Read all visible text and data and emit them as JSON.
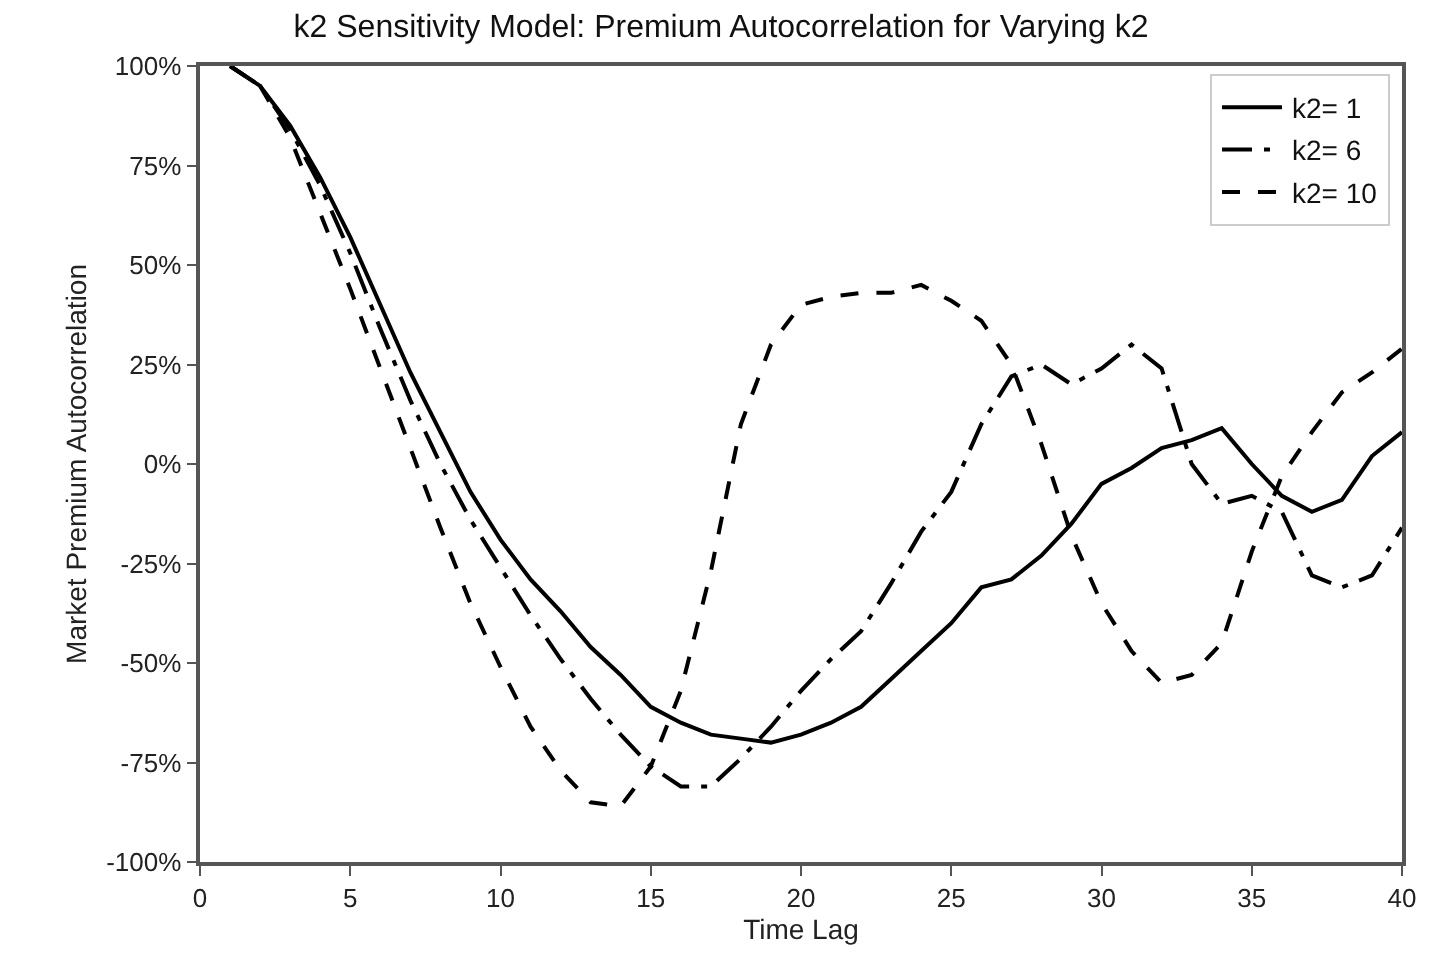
{
  "chart_data": {
    "type": "line",
    "title": "k2 Sensitivity Model: Premium Autocorrelation for Varying k2",
    "xlabel": "Time Lag",
    "ylabel": "Market Premium Autocorrelation",
    "x": [
      1,
      2,
      3,
      4,
      5,
      6,
      7,
      8,
      9,
      10,
      11,
      12,
      13,
      14,
      15,
      16,
      17,
      18,
      19,
      20,
      21,
      22,
      23,
      24,
      25,
      26,
      27,
      28,
      29,
      30,
      31,
      32,
      33,
      34,
      35,
      36,
      37,
      38,
      39,
      40
    ],
    "series": [
      {
        "name": "k2= 1",
        "color": "#000000",
        "line_style": "solid",
        "values": [
          100,
          95,
          85,
          72,
          57,
          40,
          23,
          8,
          -7,
          -19,
          -29,
          -37,
          -46,
          -53,
          -61,
          -65,
          -68,
          -69,
          -70,
          -68,
          -65,
          -61,
          -54,
          -47,
          -40,
          -31,
          -29,
          -23,
          -15,
          -5,
          -1,
          4,
          6,
          9,
          0,
          -8,
          -12,
          -9,
          2,
          8
        ]
      },
      {
        "name": "k2= 6",
        "color": "#000000",
        "line_style": "dashdot",
        "values": [
          100,
          95,
          84,
          70,
          53,
          34,
          16,
          0,
          -14,
          -26,
          -38,
          -49,
          -59,
          -68,
          -76,
          -81,
          -81,
          -74,
          -66,
          -57,
          -49,
          -42,
          -30,
          -17,
          -7,
          10,
          22,
          25,
          20,
          24,
          30,
          24,
          0,
          -10,
          -8,
          -12,
          -28,
          -31,
          -28,
          -16
        ]
      },
      {
        "name": "k2= 10",
        "color": "#000000",
        "line_style": "dashed",
        "values": [
          100,
          95,
          82,
          63,
          44,
          24,
          4,
          -16,
          -35,
          -51,
          -66,
          -77,
          -85,
          -86,
          -76,
          -57,
          -27,
          10,
          30,
          40,
          42,
          43,
          43,
          45,
          41,
          36,
          25,
          5,
          -18,
          -35,
          -47,
          -55,
          -53,
          -45,
          -22,
          -3,
          8,
          18,
          23,
          29
        ]
      }
    ],
    "xlim": [
      0,
      40
    ],
    "xticks": [
      0,
      5,
      10,
      15,
      20,
      25,
      30,
      35,
      40
    ],
    "ylim": [
      -100,
      100
    ],
    "yticks": [
      {
        "value": -100,
        "label": "-100%"
      },
      {
        "value": -75,
        "label": "-75%"
      },
      {
        "value": -50,
        "label": "-50%"
      },
      {
        "value": -25,
        "label": "-25%"
      },
      {
        "value": 0,
        "label": "0%"
      },
      {
        "value": 25,
        "label": "25%"
      },
      {
        "value": 50,
        "label": "50%"
      },
      {
        "value": 75,
        "label": "75%"
      },
      {
        "value": 100,
        "label": "100%"
      }
    ],
    "legend": "top right"
  }
}
